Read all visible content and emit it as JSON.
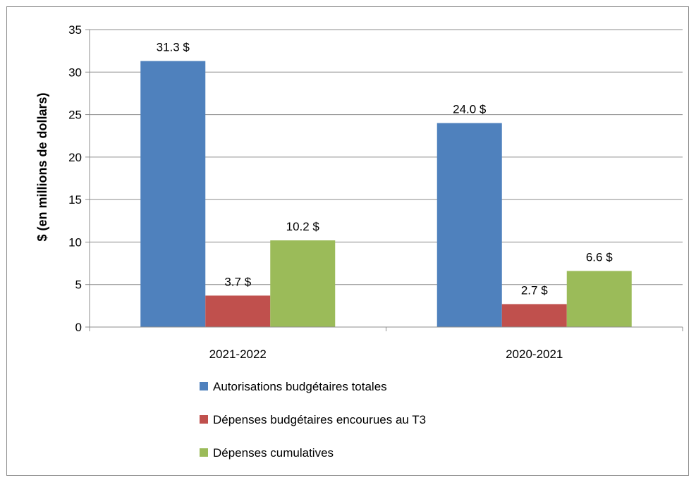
{
  "chart_data": {
    "type": "bar",
    "title": "",
    "xlabel": "",
    "ylabel": "$ (en millions de dollars)",
    "ylim": [
      0,
      35
    ],
    "yticks": [
      0,
      5,
      10,
      15,
      20,
      25,
      30,
      35
    ],
    "grid": true,
    "legend_position": "bottom",
    "categories": [
      "2021-2022",
      "2020-2021"
    ],
    "series": [
      {
        "name": "Autorisations budgétaires totales",
        "color": "#4f81bd",
        "values": [
          31.3,
          24.0
        ],
        "labels": [
          "31.3 $",
          "24.0 $"
        ]
      },
      {
        "name": "Dépenses budgétaires encourues au T3",
        "color": "#c0504d",
        "values": [
          3.7,
          2.7
        ],
        "labels": [
          "3.7 $",
          "2.7 $"
        ]
      },
      {
        "name": "Dépenses cumulatives",
        "color": "#9bbb59",
        "values": [
          10.2,
          6.6
        ],
        "labels": [
          "10.2 $",
          "6.6 $"
        ]
      }
    ]
  }
}
